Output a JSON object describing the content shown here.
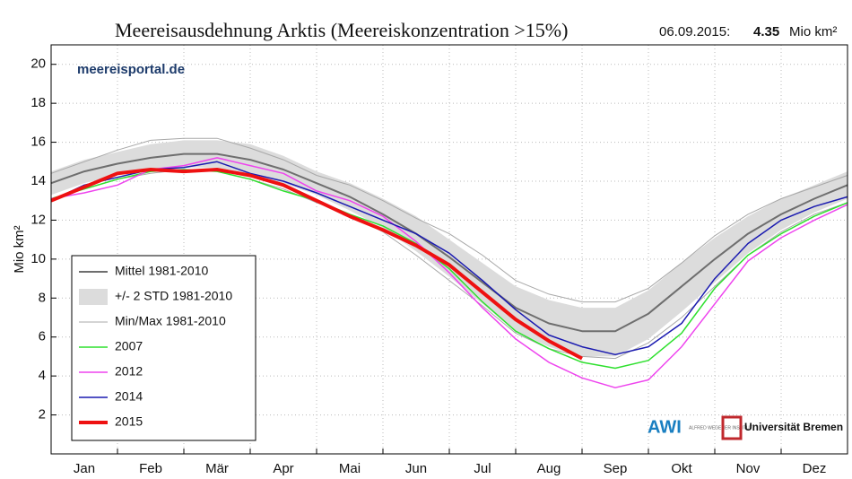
{
  "chart_data": {
    "type": "line",
    "title": "Meereisausdehnung Arktis (Meereiskonzentration >15%)",
    "date": "06.09.2015:",
    "current_value": "4.35",
    "unit": "Mio km²",
    "ylabel": "Mio km²",
    "source": "meereisportal.de",
    "logos": [
      "AWI",
      "ALFRED WEGENER INSTITUT",
      "Universität Bremen"
    ],
    "categories": [
      null,
      "Jan",
      null,
      "Feb",
      null,
      "Mär",
      null,
      "Apr",
      null,
      "Mai",
      null,
      "Jun",
      null,
      "Jul",
      null,
      "Aug",
      null,
      "Sep",
      null,
      "Okt",
      null,
      "Nov",
      null,
      "Dez",
      null
    ],
    "ylim": [
      0,
      21
    ],
    "yticks": [
      2,
      4,
      6,
      8,
      10,
      12,
      14,
      16,
      18,
      20
    ],
    "grid": true,
    "legend": "lower left",
    "series": [
      {
        "name": "Mittel 1981-2010",
        "kind": "line",
        "color": "#6e6e6e",
        "width": 2,
        "values": [
          13.9,
          14.5,
          14.9,
          15.2,
          15.4,
          15.4,
          15.1,
          14.6,
          13.9,
          13.2,
          12.3,
          11.3,
          10.1,
          8.8,
          7.5,
          6.7,
          6.3,
          6.3,
          7.2,
          8.6,
          10.0,
          11.3,
          12.3,
          13.1,
          13.8
        ]
      },
      {
        "name": "+/- 2 STD 1981-2010",
        "kind": "band",
        "color": "#dcdcdc",
        "upper": [
          14.5,
          15.1,
          15.5,
          15.9,
          16.1,
          16.1,
          15.9,
          15.3,
          14.5,
          13.9,
          13.1,
          12.2,
          11.0,
          9.8,
          8.6,
          7.9,
          7.5,
          7.5,
          8.4,
          9.8,
          11.1,
          12.2,
          13.1,
          13.8,
          14.5
        ],
        "lower": [
          13.3,
          13.9,
          14.3,
          14.6,
          14.7,
          14.7,
          14.4,
          13.9,
          13.3,
          12.5,
          11.6,
          10.4,
          9.1,
          7.7,
          6.3,
          5.5,
          5.0,
          5.0,
          5.9,
          7.3,
          8.8,
          10.3,
          11.5,
          12.4,
          13.1
        ]
      },
      {
        "name": "Min/Max 1981-2010",
        "kind": "range",
        "color": "#a8a8a8",
        "width": 1,
        "max": [
          14.4,
          15.0,
          15.6,
          16.1,
          16.2,
          16.2,
          15.7,
          15.1,
          14.3,
          13.8,
          13.0,
          12.1,
          11.3,
          10.2,
          8.9,
          8.2,
          7.8,
          7.8,
          8.5,
          9.8,
          11.2,
          12.3,
          13.1,
          13.7,
          14.3
        ],
        "min": [
          13.1,
          13.6,
          14.1,
          14.4,
          14.6,
          14.5,
          14.1,
          13.6,
          12.9,
          12.3,
          11.4,
          10.2,
          8.9,
          7.6,
          6.2,
          5.4,
          5.0,
          4.9,
          5.7,
          7.0,
          8.6,
          10.2,
          11.4,
          12.3,
          12.9
        ]
      },
      {
        "name": "2007",
        "kind": "line",
        "color": "#2ee02e",
        "width": 1.5,
        "values": [
          13.1,
          13.6,
          14.1,
          14.5,
          14.6,
          14.5,
          14.1,
          13.5,
          13.0,
          12.3,
          11.7,
          10.8,
          9.5,
          7.8,
          6.3,
          5.4,
          4.7,
          4.4,
          4.8,
          6.2,
          8.5,
          10.2,
          11.3,
          12.2,
          12.9
        ]
      },
      {
        "name": "2012",
        "kind": "line",
        "color": "#ee44ee",
        "width": 1.5,
        "values": [
          13.1,
          13.4,
          13.8,
          14.6,
          14.8,
          15.2,
          14.8,
          14.4,
          13.5,
          13.0,
          12.2,
          10.9,
          9.3,
          7.5,
          5.9,
          4.7,
          3.9,
          3.4,
          3.8,
          5.5,
          7.7,
          9.9,
          11.1,
          12.0,
          12.8
        ]
      },
      {
        "name": "2014",
        "kind": "line",
        "color": "#1a1ab0",
        "width": 1.5,
        "values": [
          13.0,
          13.8,
          14.2,
          14.6,
          14.7,
          15.0,
          14.4,
          14.0,
          13.4,
          12.7,
          12.0,
          11.3,
          10.3,
          8.9,
          7.4,
          6.1,
          5.5,
          5.1,
          5.5,
          6.7,
          9.0,
          10.8,
          12.0,
          12.7,
          13.2
        ]
      },
      {
        "name": "2015",
        "kind": "line",
        "color": "#ee1111",
        "width": 4,
        "values": [
          13.0,
          13.7,
          14.4,
          14.6,
          14.5,
          14.6,
          14.3,
          13.8,
          13.0,
          12.2,
          11.5,
          10.7,
          9.7,
          8.3,
          6.9,
          5.8,
          4.9,
          null,
          null,
          null,
          null,
          null,
          null,
          null,
          null
        ]
      }
    ]
  }
}
